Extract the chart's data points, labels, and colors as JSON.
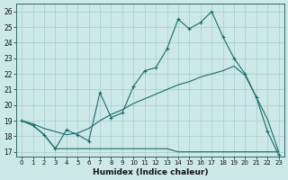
{
  "xlabel": "Humidex (Indice chaleur)",
  "ylabel": "",
  "background_color": "#cce8e8",
  "line_color": "#1a6b6b",
  "xlim": [
    -0.5,
    23.5
  ],
  "ylim": [
    16.7,
    26.5
  ],
  "yticks": [
    17,
    18,
    19,
    20,
    21,
    22,
    23,
    24,
    25,
    26
  ],
  "xticks": [
    0,
    1,
    2,
    3,
    4,
    5,
    6,
    7,
    8,
    9,
    10,
    11,
    12,
    13,
    14,
    15,
    16,
    17,
    18,
    19,
    20,
    21,
    22,
    23
  ],
  "line1_x": [
    0,
    1,
    2,
    3,
    4,
    5,
    6,
    7,
    8,
    9,
    10,
    11,
    12,
    13,
    14,
    15,
    16,
    17,
    18,
    19,
    20,
    21,
    22,
    23
  ],
  "line1_y": [
    19.0,
    18.7,
    18.1,
    17.2,
    18.4,
    18.1,
    17.7,
    20.8,
    19.2,
    19.5,
    21.2,
    22.2,
    22.4,
    23.6,
    25.5,
    24.9,
    25.3,
    26.0,
    24.4,
    23.0,
    22.0,
    20.5,
    18.3,
    16.8
  ],
  "line2_x": [
    0,
    1,
    2,
    3,
    4,
    5,
    6,
    7,
    8,
    9,
    10,
    11,
    12,
    13,
    14,
    15,
    16,
    17,
    18,
    19,
    20,
    21,
    22,
    23
  ],
  "line2_y": [
    19.0,
    18.8,
    18.5,
    18.3,
    18.1,
    18.2,
    18.5,
    19.0,
    19.4,
    19.7,
    20.1,
    20.4,
    20.7,
    21.0,
    21.3,
    21.5,
    21.8,
    22.0,
    22.2,
    22.5,
    21.9,
    20.5,
    19.1,
    17.0
  ],
  "line3_x": [
    0,
    1,
    2,
    3,
    4,
    5,
    6,
    7,
    8,
    9,
    10,
    11,
    12,
    13,
    14,
    15,
    16,
    17,
    18,
    19,
    20,
    21,
    22,
    23
  ],
  "line3_y": [
    19.0,
    18.7,
    18.1,
    17.2,
    17.2,
    17.2,
    17.2,
    17.2,
    17.2,
    17.2,
    17.2,
    17.2,
    17.2,
    17.2,
    17.0,
    17.0,
    17.0,
    17.0,
    17.0,
    17.0,
    17.0,
    17.0,
    17.0,
    17.0
  ]
}
